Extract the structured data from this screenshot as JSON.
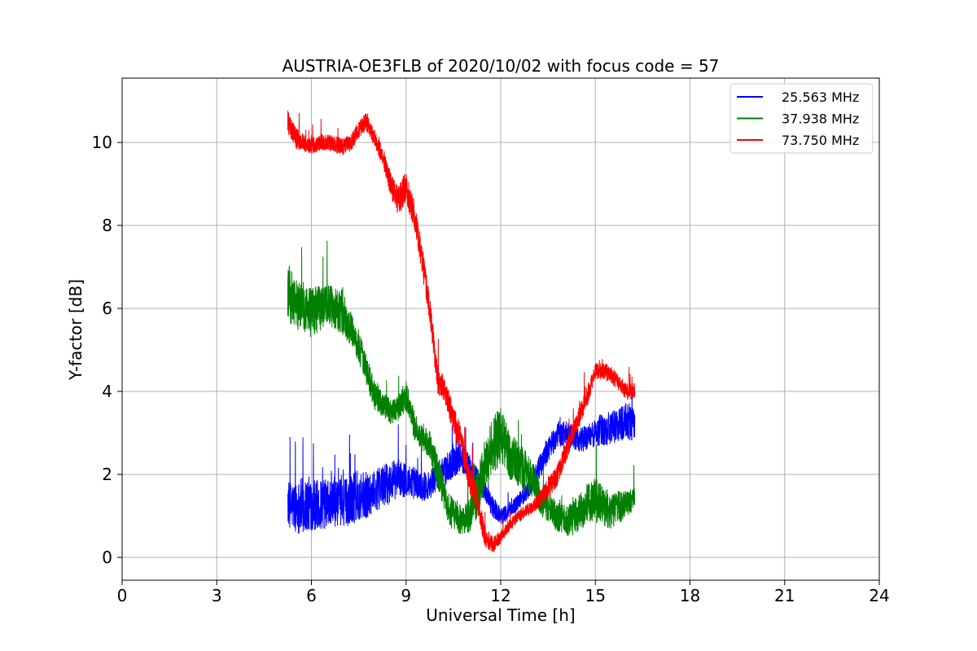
{
  "chart_data": {
    "type": "line",
    "title": "AUSTRIA-OE3FLB of 2020/10/02 with focus code = 57",
    "xlabel": "Universal Time [h]",
    "ylabel": "Y-factor [dB]",
    "xlim": [
      0,
      24
    ],
    "ylim": [
      -0.55,
      11.55
    ],
    "xticks": [
      0,
      3,
      6,
      9,
      12,
      15,
      18,
      21,
      24
    ],
    "yticks": [
      0,
      2,
      4,
      6,
      8,
      10
    ],
    "grid": true,
    "legend_position": "top-right",
    "series": [
      {
        "name": "25.563 MHz",
        "color": "#0000ff",
        "x": [
          5.25,
          5.5,
          5.75,
          6.0,
          6.25,
          6.5,
          6.75,
          7.0,
          7.25,
          7.5,
          7.75,
          8.0,
          8.25,
          8.5,
          8.75,
          9.0,
          9.25,
          9.5,
          9.75,
          10.0,
          10.25,
          10.5,
          10.75,
          11.0,
          11.25,
          11.5,
          11.75,
          12.0,
          12.25,
          12.5,
          12.75,
          13.0,
          13.25,
          13.5,
          13.75,
          14.0,
          14.25,
          14.5,
          14.75,
          15.0,
          15.25,
          15.5,
          15.75,
          16.0,
          16.25
        ],
        "y": [
          1.3,
          1.2,
          1.25,
          1.3,
          1.25,
          1.3,
          1.35,
          1.3,
          1.4,
          1.5,
          1.5,
          1.6,
          1.7,
          1.8,
          1.9,
          1.85,
          1.8,
          1.7,
          1.75,
          2.0,
          2.1,
          2.3,
          2.4,
          2.2,
          1.9,
          1.6,
          1.2,
          1.0,
          1.1,
          1.3,
          1.5,
          1.8,
          2.2,
          2.6,
          2.9,
          3.0,
          2.9,
          2.8,
          2.9,
          3.0,
          3.1,
          3.1,
          3.2,
          3.3,
          3.2
        ],
        "noise": [
          0.55,
          0.6,
          0.7,
          0.65,
          0.6,
          0.6,
          0.6,
          0.55,
          0.65,
          0.6,
          0.55,
          0.5,
          0.5,
          0.5,
          0.45,
          0.4,
          0.4,
          0.35,
          0.35,
          0.35,
          0.35,
          0.4,
          0.35,
          0.3,
          0.3,
          0.25,
          0.25,
          0.2,
          0.2,
          0.2,
          0.2,
          0.25,
          0.3,
          0.3,
          0.3,
          0.3,
          0.3,
          0.3,
          0.3,
          0.35,
          0.4,
          0.4,
          0.4,
          0.45,
          0.45
        ]
      },
      {
        "name": "37.938 MHz",
        "color": "#008000",
        "x": [
          5.25,
          5.5,
          5.75,
          6.0,
          6.25,
          6.5,
          6.75,
          7.0,
          7.25,
          7.5,
          7.75,
          8.0,
          8.25,
          8.5,
          8.75,
          9.0,
          9.25,
          9.5,
          9.75,
          10.0,
          10.25,
          10.5,
          10.75,
          11.0,
          11.25,
          11.5,
          11.75,
          12.0,
          12.25,
          12.5,
          12.75,
          13.0,
          13.25,
          13.5,
          13.75,
          14.0,
          14.25,
          14.5,
          14.75,
          15.0,
          15.25,
          15.5,
          15.75,
          16.0,
          16.25
        ],
        "y": [
          6.4,
          6.1,
          6.0,
          5.9,
          6.0,
          6.1,
          6.0,
          5.9,
          5.5,
          5.1,
          4.5,
          3.9,
          3.7,
          3.5,
          3.6,
          3.9,
          3.2,
          2.9,
          2.7,
          2.1,
          1.4,
          1.0,
          0.9,
          1.0,
          1.5,
          2.2,
          2.7,
          2.9,
          2.5,
          2.3,
          2.1,
          1.9,
          1.5,
          1.2,
          1.0,
          0.9,
          0.9,
          1.1,
          1.3,
          1.4,
          1.2,
          1.1,
          1.2,
          1.3,
          1.4
        ],
        "noise": [
          0.7,
          0.6,
          0.55,
          0.6,
          0.55,
          0.5,
          0.5,
          0.55,
          0.4,
          0.4,
          0.35,
          0.35,
          0.3,
          0.3,
          0.3,
          0.4,
          0.35,
          0.3,
          0.35,
          0.4,
          0.4,
          0.4,
          0.35,
          0.4,
          0.55,
          0.65,
          0.7,
          0.7,
          0.6,
          0.55,
          0.5,
          0.45,
          0.45,
          0.4,
          0.35,
          0.35,
          0.4,
          0.45,
          0.5,
          0.55,
          0.5,
          0.4,
          0.4,
          0.3,
          0.3
        ]
      },
      {
        "name": "73.750 MHz",
        "color": "#ff0000",
        "x": [
          5.25,
          5.5,
          5.75,
          6.0,
          6.25,
          6.5,
          6.75,
          7.0,
          7.25,
          7.5,
          7.75,
          8.0,
          8.25,
          8.5,
          8.75,
          9.0,
          9.25,
          9.5,
          9.75,
          10.0,
          10.25,
          10.5,
          10.75,
          11.0,
          11.25,
          11.5,
          11.75,
          12.0,
          12.25,
          12.5,
          12.75,
          13.0,
          13.25,
          13.5,
          13.75,
          14.0,
          14.25,
          14.5,
          14.75,
          15.0,
          15.25,
          15.5,
          15.75,
          16.0,
          16.25
        ],
        "y": [
          10.5,
          10.1,
          10.0,
          9.9,
          10.0,
          10.0,
          9.95,
          9.9,
          10.0,
          10.3,
          10.5,
          10.1,
          9.7,
          9.0,
          8.6,
          8.9,
          8.3,
          7.2,
          6.0,
          4.3,
          4.0,
          3.3,
          2.8,
          1.9,
          1.4,
          0.5,
          0.3,
          0.5,
          0.75,
          0.95,
          1.1,
          1.2,
          1.4,
          1.7,
          1.9,
          2.4,
          2.9,
          3.4,
          3.9,
          4.5,
          4.5,
          4.4,
          4.2,
          4.0,
          4.0
        ],
        "noise": [
          0.3,
          0.25,
          0.2,
          0.2,
          0.2,
          0.2,
          0.2,
          0.2,
          0.2,
          0.2,
          0.25,
          0.2,
          0.25,
          0.3,
          0.35,
          0.4,
          0.35,
          0.35,
          0.3,
          0.35,
          0.3,
          0.35,
          0.35,
          0.35,
          0.3,
          0.25,
          0.2,
          0.15,
          0.15,
          0.15,
          0.15,
          0.15,
          0.2,
          0.25,
          0.25,
          0.25,
          0.25,
          0.25,
          0.25,
          0.2,
          0.2,
          0.2,
          0.2,
          0.2,
          0.2
        ]
      }
    ]
  }
}
